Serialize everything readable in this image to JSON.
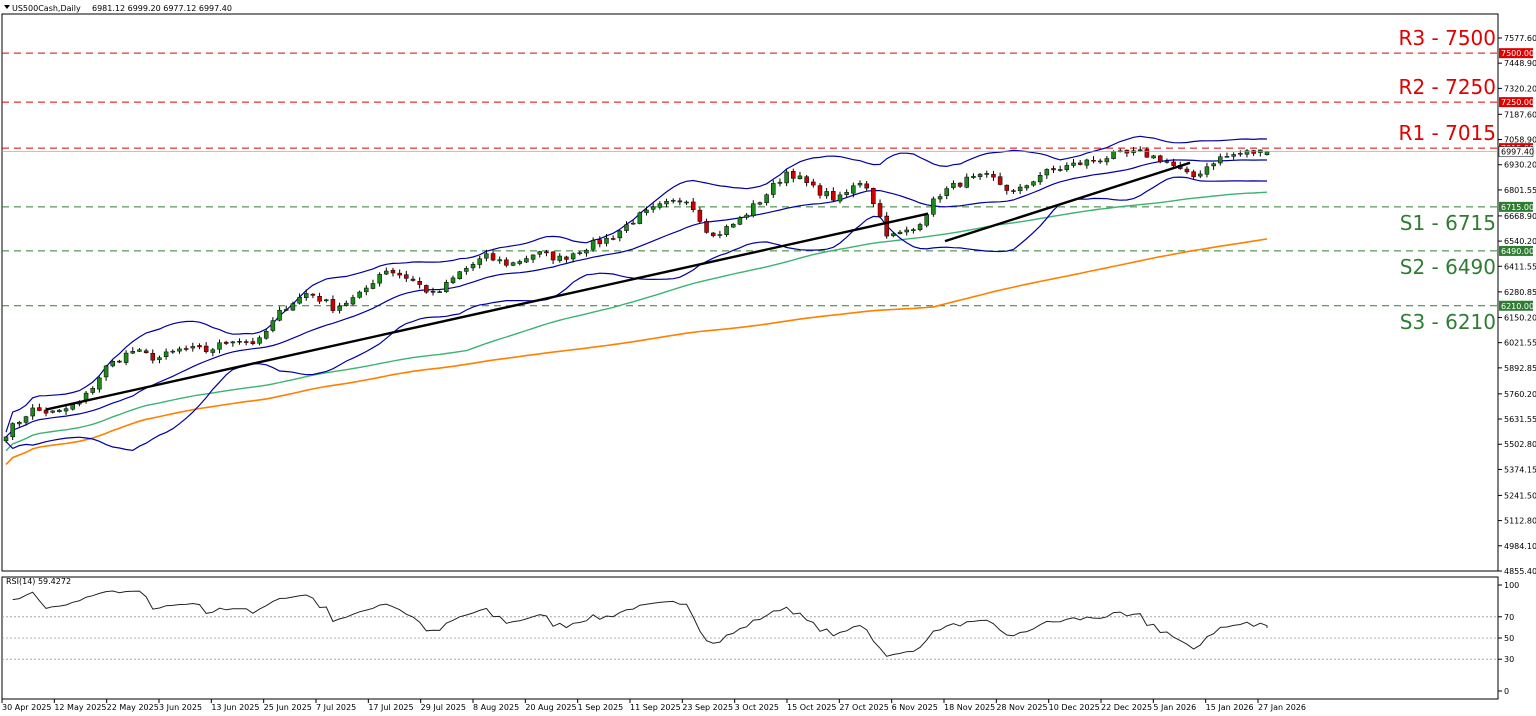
{
  "header": {
    "symbol_label": "US500Cash,Daily",
    "ohlc_label": "6981.12 6999.20 6977.12 6997.40"
  },
  "rsi_panel": {
    "label": "RSI(14) 59.4272",
    "ticks": [
      "100",
      "70",
      "50",
      "30",
      "0"
    ]
  },
  "colors": {
    "bull": "#1a8a1a",
    "bear": "#cc0000",
    "bollinger": "#0000a0",
    "ma_green": "#3cb371",
    "ma_orange": "#ff8000",
    "trendline": "#000000",
    "resistance": "#e00000",
    "support": "#2e7d32"
  },
  "chart_data": {
    "type": "candlestick",
    "symbol": "US500Cash",
    "timeframe": "Daily",
    "last_ohlc": {
      "open": 6981.12,
      "high": 6999.2,
      "low": 6977.12,
      "close": 6997.4
    },
    "ylim": [
      4855.4,
      7700
    ],
    "y_ticks": [
      "7577.60",
      "7448.90",
      "7320.20",
      "7187.60",
      "7058.90",
      "6930.20",
      "6801.55",
      "6668.90",
      "6540.20",
      "6411.55",
      "6280.85",
      "6150.20",
      "6021.55",
      "5892.85",
      "5760.20",
      "5631.55",
      "5502.80",
      "5374.15",
      "5241.50",
      "5112.80",
      "4984.10",
      "4855.40"
    ],
    "x_labels": [
      "30 Apr 2025",
      "12 May 2025",
      "22 May 2025",
      "3 Jun 2025",
      "13 Jun 2025",
      "25 Jun 2025",
      "7 Jul 2025",
      "17 Jul 2025",
      "29 Jul 2025",
      "8 Aug 2025",
      "20 Aug 2025",
      "1 Sep 2025",
      "11 Sep 2025",
      "23 Sep 2025",
      "3 Oct 2025",
      "15 Oct 2025",
      "27 Oct 2025",
      "6 Nov 2025",
      "18 Nov 2025",
      "28 Nov 2025",
      "10 Dec 2025",
      "22 Dec 2025",
      "5 Jan 2026",
      "15 Jan 2026",
      "27 Jan 2026"
    ],
    "current_price_tag": "6997.40",
    "levels": [
      {
        "name": "R3 - 7500",
        "value": 7500,
        "tag": "7500.00",
        "kind": "resistance"
      },
      {
        "name": "R2 - 7250",
        "value": 7250,
        "tag": "7250.00",
        "kind": "resistance"
      },
      {
        "name": "R1 - 7015",
        "value": 7015,
        "tag": "7015.00",
        "kind": "resistance"
      },
      {
        "name": "S1 - 6715",
        "value": 6715,
        "tag": "6715.00",
        "kind": "support"
      },
      {
        "name": "S2 - 6490",
        "value": 6490,
        "tag": "6490.00",
        "kind": "support"
      },
      {
        "name": "S3 - 6210",
        "value": 6210,
        "tag": "6210.00",
        "kind": "support"
      }
    ],
    "close_anchors": [
      5560,
      5680,
      5660,
      5720,
      5900,
      5980,
      5940,
      5990,
      5980,
      6040,
      6020,
      6200,
      6280,
      6200,
      6260,
      6400,
      6350,
      6260,
      6380,
      6460,
      6420,
      6480,
      6450,
      6510,
      6560,
      6660,
      6720,
      6760,
      6560,
      6640,
      6760,
      6900,
      6810,
      6750,
      6860,
      6560,
      6600,
      6780,
      6850,
      6870,
      6780,
      6880,
      6920,
      6950,
      6980,
      6990,
      6950,
      6860,
      6960,
      6990,
      6997.4
    ],
    "trendlines": [
      {
        "from": {
          "date": "1 May 2025",
          "value": 5680
        },
        "to": {
          "date": "12 Nov 2025",
          "value": 6680
        }
      },
      {
        "from": {
          "date": "21 Nov 2025",
          "value": 6540
        },
        "to": {
          "date": "13 Jan 2026",
          "value": 6940
        }
      }
    ],
    "rsi": {
      "period": 14,
      "value": 59.4272,
      "range": [
        0,
        100
      ],
      "levels": [
        70,
        50,
        30
      ]
    }
  }
}
